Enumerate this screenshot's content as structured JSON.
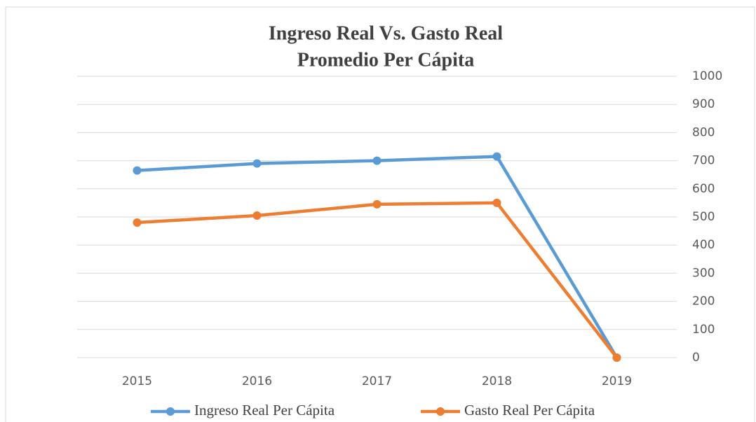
{
  "chart_data": {
    "type": "line",
    "title": [
      "Ingreso Real Vs. Gasto Real",
      "Promedio  Per Cápita"
    ],
    "categories": [
      "2015",
      "2016",
      "2017",
      "2018",
      "2019"
    ],
    "series": [
      {
        "name": "Ingreso Real Per Cápita",
        "color": "#5b9bd5",
        "values": [
          665,
          690,
          700,
          715,
          0
        ]
      },
      {
        "name": "Gasto Real Per Cápita",
        "color": "#ed7d31",
        "values": [
          480,
          505,
          545,
          550,
          0
        ]
      }
    ],
    "ylim": [
      0,
      1000
    ],
    "yticks": [
      0,
      100,
      200,
      300,
      400,
      500,
      600,
      700,
      800,
      900,
      1000
    ],
    "y_axis_side": "right",
    "grid": true,
    "legend": "bottom"
  }
}
